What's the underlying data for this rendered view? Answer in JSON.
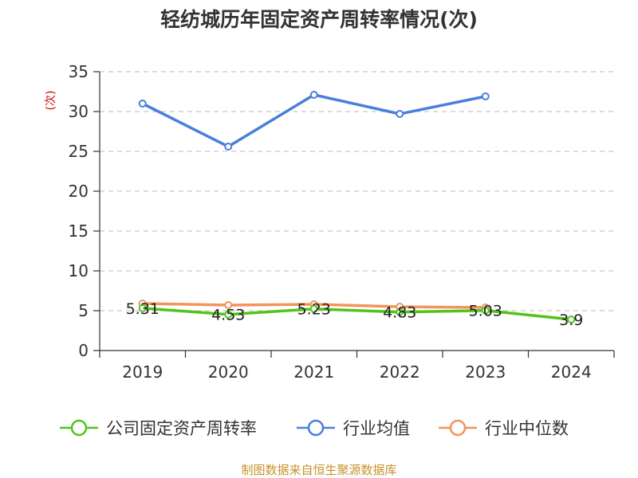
{
  "chart_data": {
    "type": "line",
    "title": "轻纺城历年固定资产周转率情况(次)",
    "unit": "(次)",
    "categories": [
      "2019",
      "2020",
      "2021",
      "2022",
      "2023",
      "2024"
    ],
    "ylim": [
      0,
      35
    ],
    "yticks": [
      "0",
      "5",
      "10",
      "15",
      "20",
      "25",
      "30",
      "35"
    ],
    "grid": true,
    "legend_position": "bottom",
    "series": [
      {
        "name": "公司固定资产周转率",
        "color": "#52c41a",
        "values": [
          5.31,
          4.53,
          5.23,
          4.83,
          5.03,
          3.9
        ],
        "labels": [
          "5.31",
          "4.53",
          "5.23",
          "4.83",
          "5.03",
          "3.9"
        ]
      },
      {
        "name": "行业均值",
        "color": "#4a7fdc",
        "values": [
          31.0,
          25.6,
          32.1,
          29.7,
          31.9,
          null
        ]
      },
      {
        "name": "行业中位数",
        "color": "#f4935c",
        "values": [
          5.9,
          5.7,
          5.8,
          5.5,
          5.4,
          null
        ]
      }
    ],
    "source": "制图数据来自恒生聚源数据库"
  }
}
